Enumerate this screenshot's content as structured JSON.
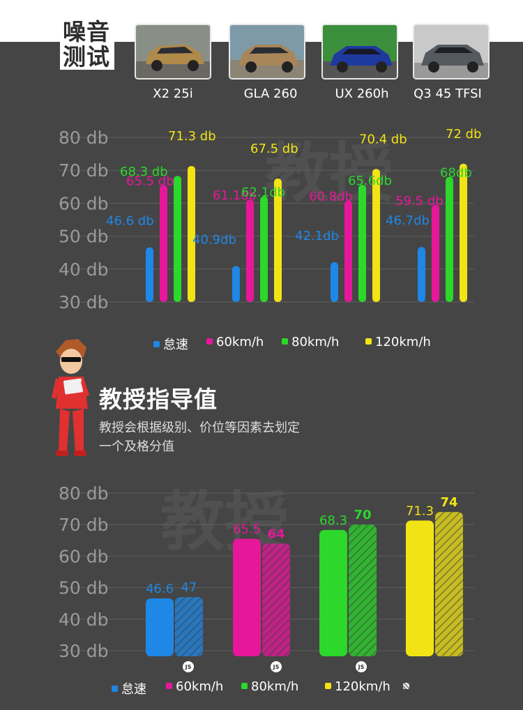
{
  "section_title": "噪音测试",
  "cars": [
    {
      "name": "X2 25i",
      "color": "#b08a48"
    },
    {
      "name": "GLA 260",
      "color": "#a8865a"
    },
    {
      "name": "UX 260h",
      "color": "#1f3a9e"
    },
    {
      "name": "Q3 45 TFSI",
      "color": "#555a60"
    }
  ],
  "colors": {
    "idle": "#1f87e6",
    "kmh60": "#e6179a",
    "kmh80": "#2bd82b",
    "kmh120": "#f2e414",
    "dark_bg": "#454545"
  },
  "chart_data": [
    {
      "type": "bar",
      "categories": [
        "X2 25i",
        "GLA 260",
        "UX 260h",
        "Q3 45 TFSI"
      ],
      "series": [
        {
          "name": "怠速",
          "values": [
            46.6,
            40.9,
            42.1,
            46.7
          ],
          "labels": [
            "46.6 db",
            "40.9db",
            "42.1db",
            "46.7db"
          ]
        },
        {
          "name": "60km/h",
          "values": [
            65.5,
            61.1,
            60.8,
            59.5
          ],
          "labels": [
            "65.5 db",
            "61.1db",
            "60.8db",
            "59.5 db"
          ]
        },
        {
          "name": "80km/h",
          "values": [
            68.3,
            62.1,
            65.6,
            68
          ],
          "labels": [
            "68.3 db",
            "62.1db",
            "65.6db",
            "68db"
          ]
        },
        {
          "name": "120km/h",
          "values": [
            71.3,
            67.5,
            70.4,
            72
          ],
          "labels": [
            "71.3 db",
            "67.5 db",
            "70.4 db",
            "72 db"
          ]
        }
      ],
      "y_ticks": [
        "30 db",
        "40 db",
        "50 db",
        "60 db",
        "70 db",
        "80 db"
      ],
      "ylim": [
        30,
        80
      ],
      "grid": true,
      "legend_position": "bottom"
    },
    {
      "type": "bar",
      "categories": [
        "怠速",
        "60km/h",
        "80km/h",
        "120km/h"
      ],
      "series": [
        {
          "name": "",
          "values": [
            46.6,
            65.5,
            68.3,
            71.3
          ],
          "labels": [
            "46.6",
            "65.5",
            "68.3",
            "71.3"
          ]
        },
        {
          "name": "",
          "values": [
            47,
            64,
            70,
            74
          ],
          "labels": [
            "47",
            "64",
            "70",
            "74"
          ],
          "style": "hatched"
        }
      ],
      "badge": "JS",
      "y_ticks": [
        "30 db",
        "40 db",
        "50 db",
        "60 db",
        "70 db",
        "80 db"
      ],
      "ylim": [
        30,
        80
      ],
      "grid": true,
      "legend_position": "bottom"
    }
  ],
  "legend1": [
    "怠速",
    "60km/h",
    "80km/h",
    "120km/h"
  ],
  "legend2": [
    "怠速",
    "60km/h",
    "80km/h",
    "120km/h"
  ],
  "guide": {
    "title": "教授指导值",
    "desc": "教授会根据级别、价位等因素去划定一个及格分值"
  },
  "watermark": "教授",
  "mascot_icon": "cartoon-professor-icon"
}
